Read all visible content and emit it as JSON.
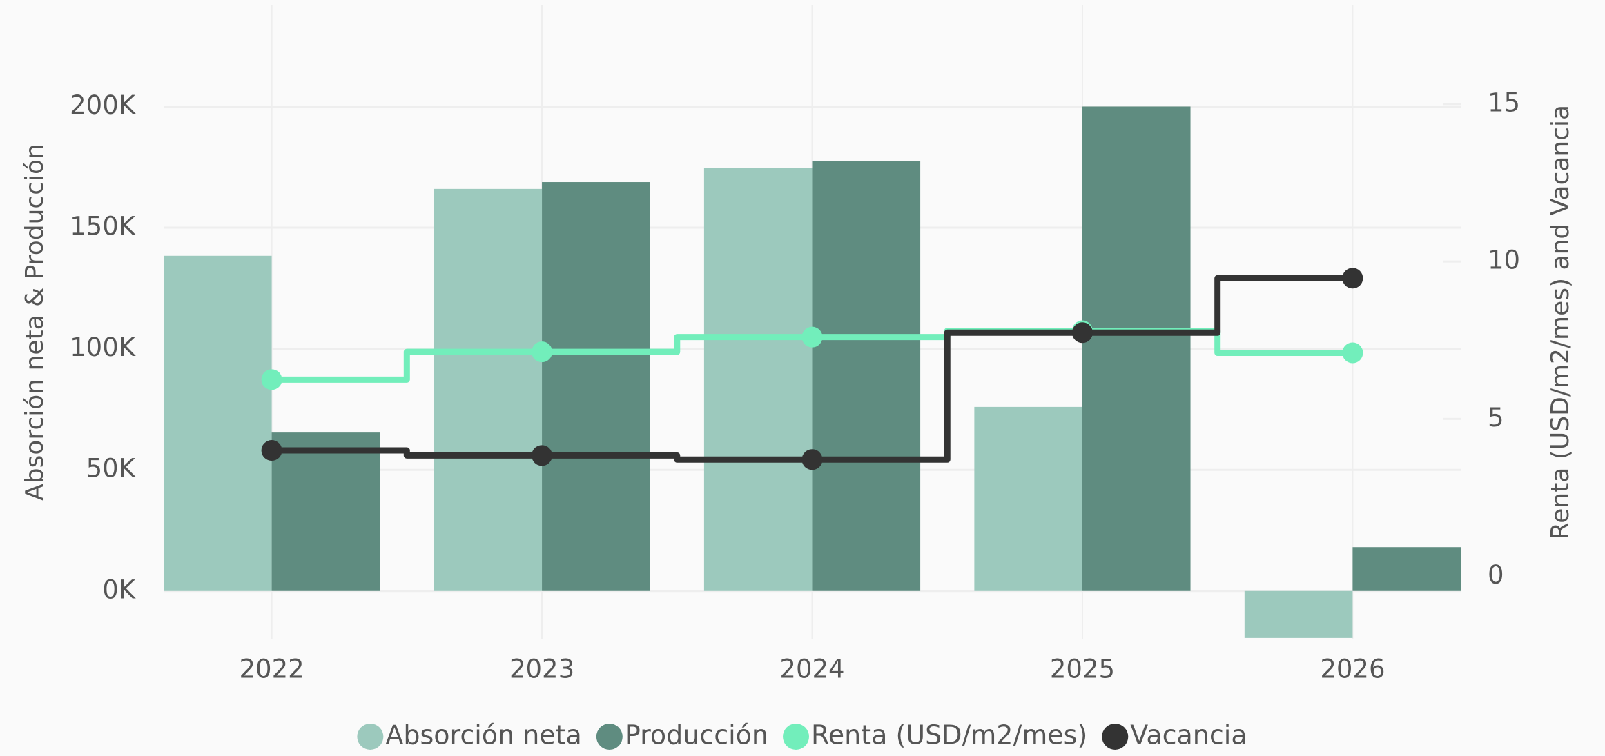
{
  "chart_data": {
    "type": "bar",
    "categories": [
      "2022",
      "2023",
      "2024",
      "2025",
      "2026"
    ],
    "ylabel": "Absorción neta & Producción",
    "y2label": "Renta (USD/m2/mes) and Vacancia",
    "ylim": [
      -20000,
      242000
    ],
    "yticks": [
      {
        "value": 0,
        "label": "0K"
      },
      {
        "value": 50000,
        "label": "50K"
      },
      {
        "value": 100000,
        "label": "100K"
      },
      {
        "value": 150000,
        "label": "150K"
      },
      {
        "value": 200000,
        "label": "200K"
      }
    ],
    "y2lim": [
      -2,
      18.15
    ],
    "y2ticks": [
      0,
      5,
      10,
      15
    ],
    "grid": true,
    "legend": "bottom",
    "series": [
      {
        "name": "Absorción neta",
        "type": "bar",
        "color": "#9cc9bd",
        "values": [
          138400,
          166000,
          174700,
          76000,
          -19400
        ]
      },
      {
        "name": "Producción",
        "type": "bar",
        "color": "#5f8c80",
        "values": [
          65400,
          168800,
          177600,
          200000,
          18100
        ]
      },
      {
        "name": "Renta (USD/m2/mes)",
        "type": "line",
        "line_shape": "hvh",
        "axis": "y2",
        "color": "#72eebb",
        "values": [
          6.25,
          7.13,
          7.6,
          7.8,
          7.1
        ]
      },
      {
        "name": "Vacancia",
        "type": "line",
        "line_shape": "hvh",
        "axis": "y2",
        "color": "#333333",
        "values": [
          4.0,
          3.84,
          3.71,
          7.74,
          9.47
        ]
      }
    ]
  }
}
